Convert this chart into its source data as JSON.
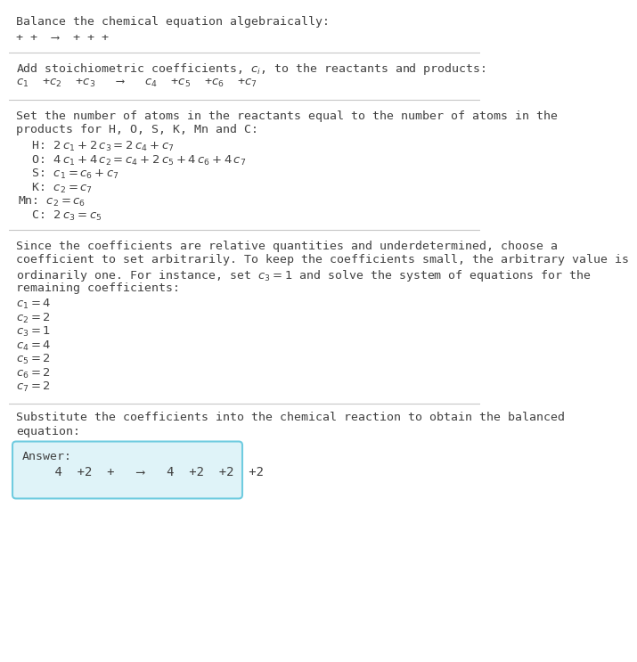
{
  "title": "Balance the chemical equation algebraically:",
  "line1": "+ +  ⟶  + + +",
  "section1_label": "Add stoichiometric coefficients, $c_i$, to the reactants and products:",
  "line2": "$c_1$  +$c_2$  +$c_3$   ⟶   $c_4$  +$c_5$  +$c_6$  +$c_7$",
  "section2_label_1": "Set the number of atoms in the reactants equal to the number of atoms in the",
  "section2_label_2": "products for H, O, S, K, Mn and C:",
  "equations": [
    [
      "  H:",
      " $2\\,c_1+2\\,c_3=2\\,c_4+c_7$"
    ],
    [
      "  O:",
      " $4\\,c_1+4\\,c_2=c_4+2\\,c_5+4\\,c_6+4\\,c_7$"
    ],
    [
      "  S:",
      " $c_1=c_6+c_7$"
    ],
    [
      "  K:",
      " $c_2=c_7$"
    ],
    [
      "Mn:",
      " $c_2=c_6$"
    ],
    [
      "  C:",
      " $2\\,c_3=c_5$"
    ]
  ],
  "section3_lines": [
    "Since the coefficients are relative quantities and underdetermined, choose a",
    "coefficient to set arbitrarily. To keep the coefficients small, the arbitrary value is",
    "ordinarily one. For instance, set $c_3=1$ and solve the system of equations for the",
    "remaining coefficients:"
  ],
  "coeff_lines": [
    "$c_1=4$",
    "$c_2=2$",
    "$c_3=1$",
    "$c_4=4$",
    "$c_5=2$",
    "$c_6=2$",
    "$c_7=2$"
  ],
  "section4_label_1": "Substitute the coefficients into the chemical reaction to obtain the balanced",
  "section4_label_2": "equation:",
  "answer_label": "Answer:",
  "answer_eq": "    4  +2  +   ⟶   4  +2  +2  +2",
  "bg_color": "#ffffff",
  "text_color": "#404040",
  "answer_box_color": "#dff3f8",
  "answer_box_border": "#70cce0",
  "hr_color": "#c8c8c8"
}
